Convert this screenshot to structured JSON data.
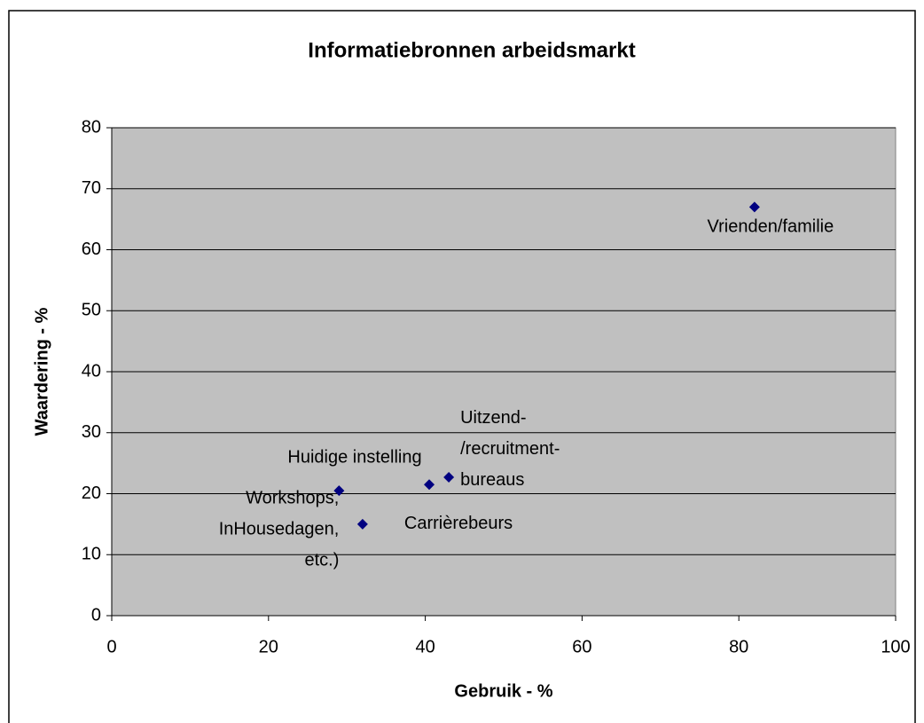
{
  "chart_data": {
    "type": "scatter",
    "title": "Informatiebronnen arbeidsmarkt",
    "x_label": "Gebruik - %",
    "y_label": "Waardering - %",
    "series": [
      {
        "color": "#000080",
        "x": [
          82,
          40.5,
          29,
          32,
          43
        ],
        "values": [
          67,
          21.5,
          20.5,
          15,
          22.7
        ],
        "point_labels": [
          [
            "Vrienden/familie"
          ],
          [
            "Huidige instelling"
          ],
          [
            "Workshops,",
            "InHousedagen,",
            "etc.)"
          ],
          [
            "Carrièrebeurs"
          ],
          [
            "Uitzend-",
            "/recruitment-",
            "bureaus"
          ]
        ]
      }
    ],
    "xlim": [
      0,
      100
    ],
    "xticks": [
      0,
      20,
      40,
      60,
      80,
      100
    ],
    "ylim": [
      0,
      80
    ],
    "yticks": [
      0,
      10,
      20,
      30,
      40,
      50,
      60,
      70,
      80
    ],
    "grid": true,
    "plot_background": "#c0c0c0"
  }
}
